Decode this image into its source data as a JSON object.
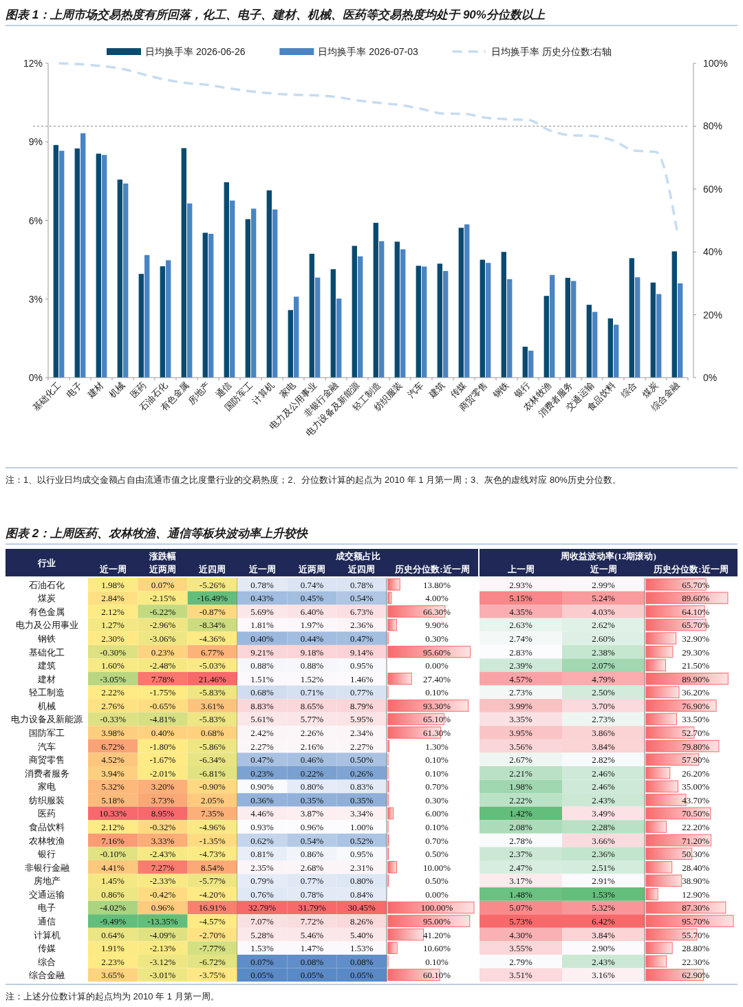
{
  "chart_data": [
    {
      "type": "bar",
      "title": "图表 1：上周市场交易热度有所回落，化工、电子、建材、机械、医药等交易热度均处于 90%分位数以上",
      "categories": [
        "基础化工",
        "电子",
        "建材",
        "机械",
        "医药",
        "石油石化",
        "有色金属",
        "房地产",
        "通信",
        "国防军工",
        "计算机",
        "家电",
        "电力及公用事业",
        "非银行金融",
        "电力设备及新能源",
        "轻工制造",
        "纺织服装",
        "汽车",
        "建筑",
        "传媒",
        "商贸零售",
        "钢铁",
        "银行",
        "农林牧渔",
        "消费者服务",
        "交通运输",
        "食品饮料",
        "综合",
        "煤炭",
        "综合金融"
      ],
      "series": [
        {
          "name": "日均换手率 2026-06-26",
          "color": "#0b4a6f",
          "values": [
            8.88,
            8.75,
            8.55,
            7.56,
            3.96,
            4.25,
            8.76,
            5.53,
            7.46,
            6.05,
            7.15,
            2.58,
            4.73,
            4.14,
            5.03,
            5.91,
            5.19,
            4.27,
            4.35,
            5.72,
            4.5,
            4.8,
            1.18,
            3.12,
            3.81,
            2.78,
            2.26,
            4.56,
            3.63,
            4.82
          ]
        },
        {
          "name": "日均换手率 2026-07-03",
          "color": "#4a84c3",
          "values": [
            8.66,
            9.33,
            8.5,
            7.41,
            4.68,
            4.48,
            6.65,
            5.49,
            6.76,
            6.45,
            6.42,
            3.09,
            3.82,
            3.02,
            4.63,
            5.21,
            4.9,
            4.24,
            4.07,
            5.85,
            4.38,
            3.76,
            1.03,
            3.92,
            3.69,
            2.51,
            2.02,
            3.83,
            3.19,
            3.6
          ]
        },
        {
          "name": "日均换手率 历史分位数:右轴",
          "type": "line",
          "axis": "y2",
          "line_style": "dashed",
          "color": "#c6dcf0",
          "values": [
            100,
            99.7,
            99.1,
            98.2,
            96.4,
            94.8,
            93.7,
            93.1,
            92,
            91.1,
            90.4,
            90,
            89.8,
            89.3,
            88.2,
            87.4,
            86.7,
            85.5,
            84,
            83.9,
            82.7,
            82.2,
            82,
            78.7,
            77.1,
            76.9,
            75.4,
            72.2,
            71.8,
            46.2
          ]
        }
      ],
      "ylim": [
        0,
        12
      ],
      "yticks": [
        {
          "value": 0,
          "label": "0%"
        },
        {
          "value": 3,
          "label": "3%"
        },
        {
          "value": 6,
          "label": "6%"
        },
        {
          "value": 9,
          "label": "9%"
        },
        {
          "value": 12,
          "label": "12%"
        }
      ],
      "y2lim": [
        0,
        100
      ],
      "y2ticks": [
        {
          "value": 0,
          "label": "0%"
        },
        {
          "value": 20,
          "label": "20%"
        },
        {
          "value": 40,
          "label": "40%"
        },
        {
          "value": 60,
          "label": "60%"
        },
        {
          "value": 80,
          "label": "80%"
        },
        {
          "value": 100,
          "label": "100%"
        }
      ],
      "ref_lines": [
        {
          "axis": "y2",
          "value": 80,
          "color": "#888888",
          "line_style": "dotted"
        }
      ],
      "legend": "top",
      "annotations": [
        "注：1、以行业日均成交金额占自由流通市值之比度量行业的交易热度；2、分位数计算的起点为 2010 年 1 月第一周；3、灰色的虚线对应 80%历史分位数。"
      ]
    },
    {
      "type": "heatmap",
      "title": "图表 2：上周医药、农林牧渔、通信等板块波动率上升较快",
      "subtitle": "涨跌幅",
      "ylabel": "行业",
      "categories": [
        "近一周",
        "近两周",
        "近四周"
      ],
      "y_categories": [
        "石油石化",
        "煤炭",
        "有色金属",
        "电力及公用事业",
        "钢铁",
        "基础化工",
        "建筑",
        "建材",
        "轻工制造",
        "机械",
        "电力设备及新能源",
        "国防军工",
        "汽车",
        "商贸零售",
        "消费者服务",
        "家电",
        "纺织服装",
        "医药",
        "食品饮料",
        "农林牧渔",
        "银行",
        "非银行金融",
        "房地产",
        "交通运输",
        "电子",
        "通信",
        "计算机",
        "传媒",
        "综合",
        "综合金融"
      ],
      "cells": [
        [
          1.98,
          0.07,
          -5.26
        ],
        [
          2.84,
          -2.15,
          -16.49
        ],
        [
          2.12,
          -6.22,
          -0.87
        ],
        [
          1.27,
          -2.96,
          -8.34
        ],
        [
          2.3,
          -3.06,
          -4.36
        ],
        [
          -0.3,
          0.23,
          6.77
        ],
        [
          1.6,
          -2.48,
          -5.03
        ],
        [
          -3.05,
          7.78,
          21.46
        ],
        [
          2.22,
          -1.75,
          -5.83
        ],
        [
          2.76,
          -0.65,
          3.61
        ],
        [
          -0.33,
          -4.81,
          -5.83
        ],
        [
          3.98,
          0.4,
          0.68
        ],
        [
          6.72,
          -1.8,
          -5.86
        ],
        [
          4.52,
          -1.67,
          -6.34
        ],
        [
          3.94,
          -2.01,
          -6.81
        ],
        [
          5.32,
          3.2,
          -0.9
        ],
        [
          5.18,
          3.73,
          2.05
        ],
        [
          10.33,
          8.95,
          7.35
        ],
        [
          2.12,
          -0.32,
          -4.96
        ],
        [
          7.16,
          3.33,
          -1.35
        ],
        [
          -0.1,
          -2.43,
          -4.73
        ],
        [
          4.41,
          7.27,
          8.54
        ],
        [
          1.45,
          -2.33,
          -5.77
        ],
        [
          0.86,
          -0.42,
          -4.2
        ],
        [
          -4.02,
          0.96,
          16.91
        ],
        [
          -9.49,
          -13.35,
          -4.57
        ],
        [
          0.64,
          -4.09,
          -2.7
        ],
        [
          1.91,
          -2.13,
          -7.77
        ],
        [
          2.23,
          -3.12,
          -6.72
        ],
        [
          3.65,
          -3.01,
          -3.75
        ]
      ],
      "cell_labels": [
        [
          "1.98%",
          "0.07%",
          "-5.26%"
        ],
        [
          "2.84%",
          "-2.15%",
          "-16.49%"
        ],
        [
          "2.12%",
          "-6.22%",
          "-0.87%"
        ],
        [
          "1.27%",
          "-2.96%",
          "-8.34%"
        ],
        [
          "2.30%",
          "-3.06%",
          "-4.36%"
        ],
        [
          "-0.30%",
          "0.23%",
          "6.77%"
        ],
        [
          "1.60%",
          "-2.48%",
          "-5.03%"
        ],
        [
          "-3.05%",
          "7.78%",
          "21.46%"
        ],
        [
          "2.22%",
          "-1.75%",
          "-5.83%"
        ],
        [
          "2.76%",
          "-0.65%",
          "3.61%"
        ],
        [
          "-0.33%",
          "-4.81%",
          "-5.83%"
        ],
        [
          "3.98%",
          "0.40%",
          "0.68%"
        ],
        [
          "6.72%",
          "-1.80%",
          "-5.86%"
        ],
        [
          "4.52%",
          "-1.67%",
          "-6.34%"
        ],
        [
          "3.94%",
          "-2.01%",
          "-6.81%"
        ],
        [
          "5.32%",
          "3.20%",
          "-0.90%"
        ],
        [
          "5.18%",
          "3.73%",
          "2.05%"
        ],
        [
          "10.33%",
          "8.95%",
          "7.35%"
        ],
        [
          "2.12%",
          "-0.32%",
          "-4.96%"
        ],
        [
          "7.16%",
          "3.33%",
          "-1.35%"
        ],
        [
          "-0.10%",
          "-2.43%",
          "-4.73%"
        ],
        [
          "4.41%",
          "7.27%",
          "8.54%"
        ],
        [
          "1.45%",
          "-2.33%",
          "-5.77%"
        ],
        [
          "0.86%",
          "-0.42%",
          "-4.20%"
        ],
        [
          "-4.02%",
          "0.96%",
          "16.91%"
        ],
        [
          "-9.49%",
          "-13.35%",
          "-4.57%"
        ],
        [
          "0.64%",
          "-4.09%",
          "-2.70%"
        ],
        [
          "1.91%",
          "-2.13%",
          "-7.77%"
        ],
        [
          "2.23%",
          "-3.12%",
          "-6.72%"
        ],
        [
          "3.65%",
          "-3.01%",
          "-3.75%"
        ]
      ]
    },
    {
      "type": "heatmap",
      "subtitle": "成交额占比",
      "tick_labels": "x",
      "categories": [
        "近一周",
        "近两周",
        "近四周"
      ],
      "y_categories": [
        null,
        null,
        null,
        null,
        null,
        null,
        null,
        null,
        null,
        null,
        null,
        null,
        null,
        null,
        null,
        null,
        null,
        null,
        null,
        null,
        null,
        null,
        null,
        null,
        null,
        null,
        null,
        null,
        null,
        null
      ],
      "cells": [
        [
          0.78,
          0.74,
          0.78
        ],
        [
          0.43,
          0.45,
          0.54
        ],
        [
          5.69,
          6.4,
          6.73
        ],
        [
          1.81,
          1.97,
          2.36
        ],
        [
          0.4,
          0.44,
          0.47
        ],
        [
          9.21,
          9.18,
          9.14
        ],
        [
          0.88,
          0.88,
          0.95
        ],
        [
          1.51,
          1.52,
          1.46
        ],
        [
          0.68,
          0.71,
          0.77
        ],
        [
          8.83,
          8.65,
          8.79
        ],
        [
          5.61,
          5.77,
          5.95
        ],
        [
          2.42,
          2.26,
          2.34
        ],
        [
          2.27,
          2.16,
          2.27
        ],
        [
          0.47,
          0.46,
          0.5
        ],
        [
          0.23,
          0.22,
          0.26
        ],
        [
          0.9,
          0.8,
          0.83
        ],
        [
          0.36,
          0.35,
          0.35
        ],
        [
          4.46,
          3.87,
          3.34
        ],
        [
          0.93,
          0.96,
          1.0
        ],
        [
          0.62,
          0.54,
          0.52
        ],
        [
          0.81,
          0.86,
          0.95
        ],
        [
          2.35,
          2.68,
          2.31
        ],
        [
          0.79,
          0.77,
          0.8
        ],
        [
          0.76,
          0.78,
          0.84
        ],
        [
          32.79,
          31.79,
          30.45
        ],
        [
          7.07,
          7.72,
          8.26
        ],
        [
          5.28,
          5.46,
          5.4
        ],
        [
          1.53,
          1.47,
          1.53
        ],
        [
          0.07,
          0.08,
          0.08
        ],
        [
          0.05,
          0.05,
          0.05
        ]
      ],
      "cell_labels": [
        [
          "0.78%",
          "0.74%",
          "0.78%"
        ],
        [
          "0.43%",
          "0.45%",
          "0.54%"
        ],
        [
          "5.69%",
          "6.40%",
          "6.73%"
        ],
        [
          "1.81%",
          "1.97%",
          "2.36%"
        ],
        [
          "0.40%",
          "0.44%",
          "0.47%"
        ],
        [
          "9.21%",
          "9.18%",
          "9.14%"
        ],
        [
          "0.88%",
          "0.88%",
          "0.95%"
        ],
        [
          "1.51%",
          "1.52%",
          "1.46%"
        ],
        [
          "0.68%",
          "0.71%",
          "0.77%"
        ],
        [
          "8.83%",
          "8.65%",
          "8.79%"
        ],
        [
          "5.61%",
          "5.77%",
          "5.95%"
        ],
        [
          "2.42%",
          "2.26%",
          "2.34%"
        ],
        [
          "2.27%",
          "2.16%",
          "2.27%"
        ],
        [
          "0.47%",
          "0.46%",
          "0.50%"
        ],
        [
          "0.23%",
          "0.22%",
          "0.26%"
        ],
        [
          "0.90%",
          "0.80%",
          "0.83%"
        ],
        [
          "0.36%",
          "0.35%",
          "0.35%"
        ],
        [
          "4.46%",
          "3.87%",
          "3.34%"
        ],
        [
          "0.93%",
          "0.96%",
          "1.00%"
        ],
        [
          "0.62%",
          "0.54%",
          "0.52%"
        ],
        [
          "0.81%",
          "0.86%",
          "0.95%"
        ],
        [
          "2.35%",
          "2.68%",
          "2.31%"
        ],
        [
          "0.79%",
          "0.77%",
          "0.80%"
        ],
        [
          "0.76%",
          "0.78%",
          "0.84%"
        ],
        [
          "32.79%",
          "31.79%",
          "30.45%"
        ],
        [
          "7.07%",
          "7.72%",
          "8.26%"
        ],
        [
          "5.28%",
          "5.46%",
          "5.40%"
        ],
        [
          "1.53%",
          "1.47%",
          "1.53%"
        ],
        [
          "0.07%",
          "0.08%",
          "0.08%"
        ],
        [
          "0.05%",
          "0.05%",
          "0.05%"
        ]
      ]
    },
    {
      "type": "bar",
      "orientation": "horizontal",
      "xlabel": "历史分位数:近一周",
      "tick_labels": false,
      "color": "#f8696b",
      "categories": [
        null,
        null,
        null,
        null,
        null,
        null,
        null,
        null,
        null,
        null,
        null,
        null,
        null,
        null,
        null,
        null,
        null,
        null,
        null,
        null,
        null,
        null,
        null,
        null,
        null,
        null,
        null,
        null,
        null,
        null
      ],
      "values": [
        13.8,
        4.0,
        66.3,
        9.9,
        0.3,
        95.6,
        0.0,
        27.4,
        0.1,
        93.3,
        65.1,
        61.3,
        1.3,
        0.1,
        0.1,
        0.7,
        0.3,
        6.0,
        0.1,
        0.7,
        0.5,
        10.0,
        0.5,
        0.0,
        100.0,
        95.0,
        41.2,
        10.6,
        0.1,
        60.1
      ],
      "value_labels": [
        "13.80%",
        "4.00%",
        "66.30%",
        "9.90%",
        "0.30%",
        "95.60%",
        "0.00%",
        "27.40%",
        "0.10%",
        "93.30%",
        "65.10%",
        "61.30%",
        "1.30%",
        "0.10%",
        "0.10%",
        "0.70%",
        "0.30%",
        "6.00%",
        "0.10%",
        "0.70%",
        "0.50%",
        "10.00%",
        "0.50%",
        "0.00%",
        "100.00%",
        "95.00%",
        "41.20%",
        "10.60%",
        "0.10%",
        "60.10%"
      ]
    },
    {
      "type": "heatmap",
      "subtitle": "周收益波动率(12期滚动)",
      "tick_labels": "x",
      "categories": [
        "上一周",
        "近一周"
      ],
      "y_categories": [
        null,
        null,
        null,
        null,
        null,
        null,
        null,
        null,
        null,
        null,
        null,
        null,
        null,
        null,
        null,
        null,
        null,
        null,
        null,
        null,
        null,
        null,
        null,
        null,
        null,
        null,
        null,
        null,
        null,
        null
      ],
      "cells": [
        [
          2.93,
          2.99
        ],
        [
          5.15,
          5.24
        ],
        [
          4.35,
          4.03
        ],
        [
          2.63,
          2.62
        ],
        [
          2.74,
          2.6
        ],
        [
          2.83,
          2.38
        ],
        [
          2.39,
          2.07
        ],
        [
          4.57,
          4.79
        ],
        [
          2.73,
          2.5
        ],
        [
          3.99,
          3.7
        ],
        [
          3.35,
          2.73
        ],
        [
          3.95,
          3.86
        ],
        [
          3.56,
          3.84
        ],
        [
          2.67,
          2.82
        ],
        [
          2.21,
          2.46
        ],
        [
          1.98,
          2.46
        ],
        [
          2.22,
          2.43
        ],
        [
          1.42,
          3.49
        ],
        [
          2.08,
          2.28
        ],
        [
          2.78,
          3.66
        ],
        [
          2.37,
          2.36
        ],
        [
          2.47,
          2.51
        ],
        [
          3.17,
          2.91
        ],
        [
          1.48,
          1.53
        ],
        [
          5.07,
          5.32
        ],
        [
          5.73,
          6.42
        ],
        [
          4.3,
          3.84
        ],
        [
          3.55,
          2.9
        ],
        [
          2.79,
          2.43
        ],
        [
          3.51,
          3.16
        ]
      ],
      "cell_labels": [
        [
          "2.93%",
          "2.99%"
        ],
        [
          "5.15%",
          "5.24%"
        ],
        [
          "4.35%",
          "4.03%"
        ],
        [
          "2.63%",
          "2.62%"
        ],
        [
          "2.74%",
          "2.60%"
        ],
        [
          "2.83%",
          "2.38%"
        ],
        [
          "2.39%",
          "2.07%"
        ],
        [
          "4.57%",
          "4.79%"
        ],
        [
          "2.73%",
          "2.50%"
        ],
        [
          "3.99%",
          "3.70%"
        ],
        [
          "3.35%",
          "2.73%"
        ],
        [
          "3.95%",
          "3.86%"
        ],
        [
          "3.56%",
          "3.84%"
        ],
        [
          "2.67%",
          "2.82%"
        ],
        [
          "2.21%",
          "2.46%"
        ],
        [
          "1.98%",
          "2.46%"
        ],
        [
          "2.22%",
          "2.43%"
        ],
        [
          "1.42%",
          "3.49%"
        ],
        [
          "2.08%",
          "2.28%"
        ],
        [
          "2.78%",
          "3.66%"
        ],
        [
          "2.37%",
          "2.36%"
        ],
        [
          "2.47%",
          "2.51%"
        ],
        [
          "3.17%",
          "2.91%"
        ],
        [
          "1.48%",
          "1.53%"
        ],
        [
          "5.07%",
          "5.32%"
        ],
        [
          "5.73%",
          "6.42%"
        ],
        [
          "4.30%",
          "3.84%"
        ],
        [
          "3.55%",
          "2.90%"
        ],
        [
          "2.79%",
          "2.43%"
        ],
        [
          "3.51%",
          "3.16%"
        ]
      ]
    },
    {
      "type": "bar",
      "orientation": "horizontal",
      "xlabel": "历史分位数:近一周",
      "tick_labels": false,
      "color": "#f8696b",
      "categories": [
        null,
        null,
        null,
        null,
        null,
        null,
        null,
        null,
        null,
        null,
        null,
        null,
        null,
        null,
        null,
        null,
        null,
        null,
        null,
        null,
        null,
        null,
        null,
        null,
        null,
        null,
        null,
        null,
        null,
        null
      ],
      "values": [
        65.7,
        89.6,
        64.1,
        65.7,
        32.9,
        29.3,
        21.5,
        89.9,
        36.2,
        76.9,
        33.5,
        52.7,
        79.8,
        57.9,
        26.2,
        35.0,
        43.7,
        70.5,
        22.2,
        71.2,
        50.3,
        28.4,
        38.9,
        12.9,
        87.3,
        95.7,
        55.7,
        28.8,
        22.3,
        62.9
      ],
      "value_labels": [
        "65.70%",
        "89.60%",
        "64.10%",
        "65.70%",
        "32.90%",
        "29.30%",
        "21.50%",
        "89.90%",
        "36.20%",
        "76.90%",
        "33.50%",
        "52.70%",
        "79.80%",
        "57.90%",
        "26.20%",
        "35.00%",
        "43.70%",
        "70.50%",
        "22.20%",
        "71.20%",
        "50.30%",
        "28.40%",
        "38.90%",
        "12.90%",
        "87.30%",
        "95.70%",
        "55.70%",
        "28.80%",
        "22.30%",
        "62.90%"
      ],
      "annotations": [
        "注：上述分位数计算的起点均为 2010 年 1 月第一周。"
      ]
    }
  ]
}
